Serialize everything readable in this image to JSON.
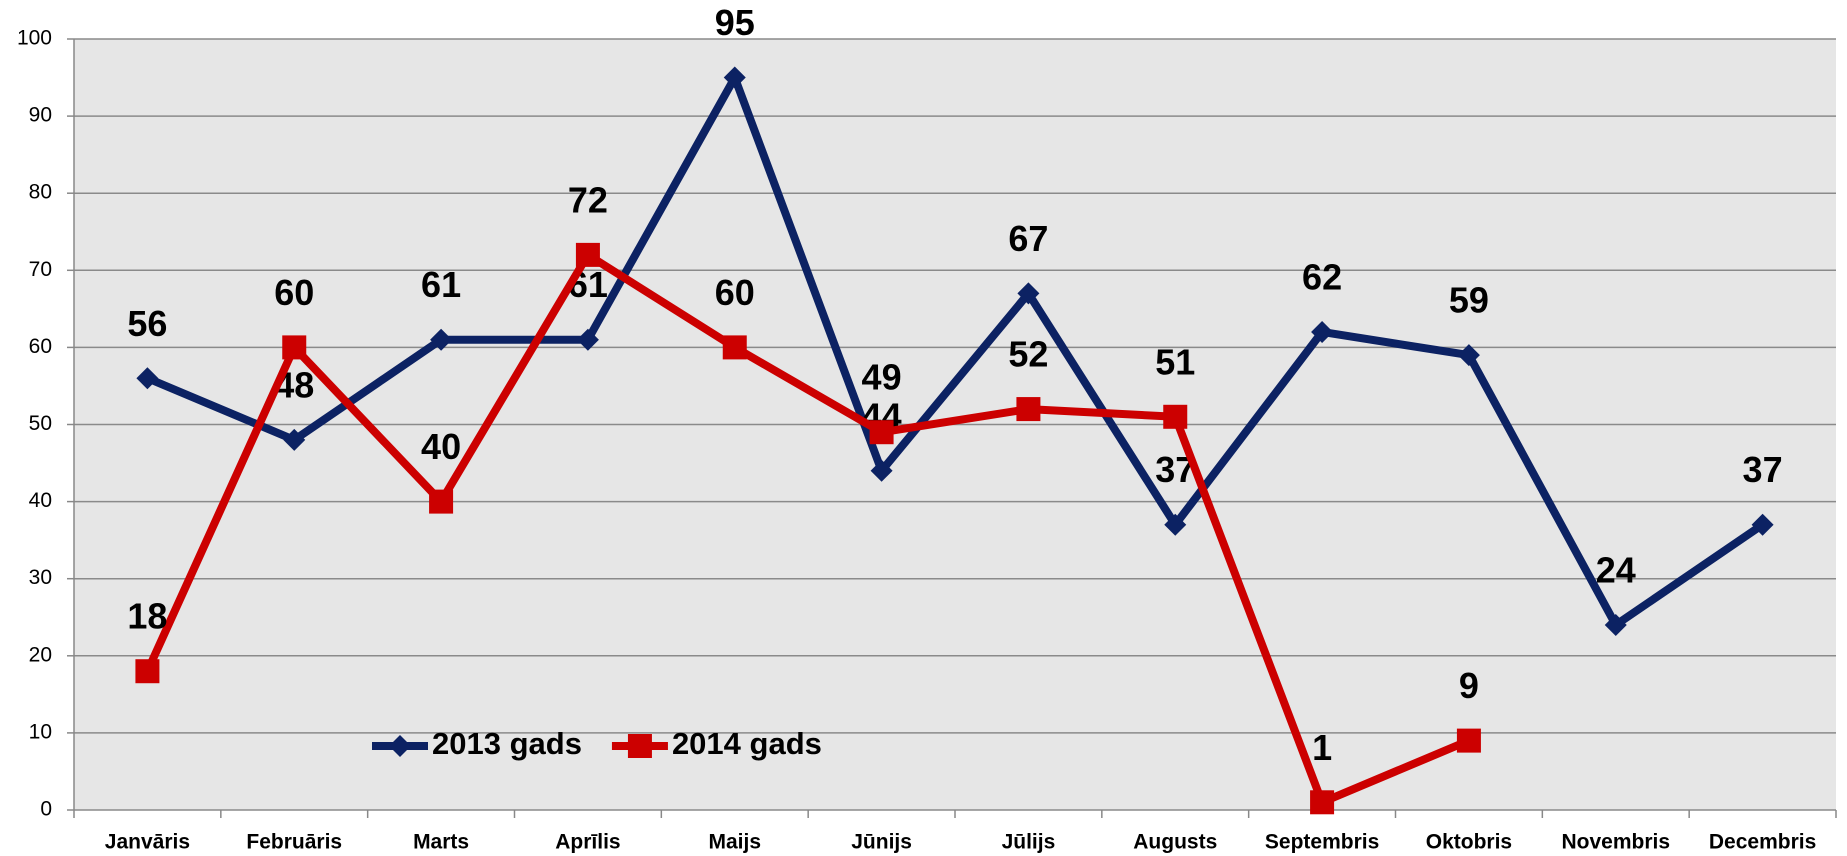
{
  "chart_data": {
    "type": "line",
    "categories": [
      "Janvāris",
      "Februāris",
      "Marts",
      "Aprīlis",
      "Maijs",
      "Jūnijs",
      "Jūlijs",
      "Augusts",
      "Septembris",
      "Oktobris",
      "Novembris",
      "Decembris"
    ],
    "series": [
      {
        "name": "2013 gads",
        "color": "#0c2263",
        "marker": "diamond",
        "values": [
          56,
          48,
          61,
          61,
          95,
          44,
          67,
          37,
          62,
          59,
          24,
          37
        ]
      },
      {
        "name": "2014 gads",
        "color": "#cc0000",
        "marker": "square",
        "values": [
          18,
          60,
          40,
          72,
          60,
          49,
          52,
          51,
          1,
          9,
          null,
          null
        ]
      }
    ],
    "ylim": [
      0,
      100
    ],
    "yticks": [
      0,
      10,
      20,
      30,
      40,
      50,
      60,
      70,
      80,
      90,
      100
    ],
    "grid": true,
    "legend": "lower center"
  }
}
